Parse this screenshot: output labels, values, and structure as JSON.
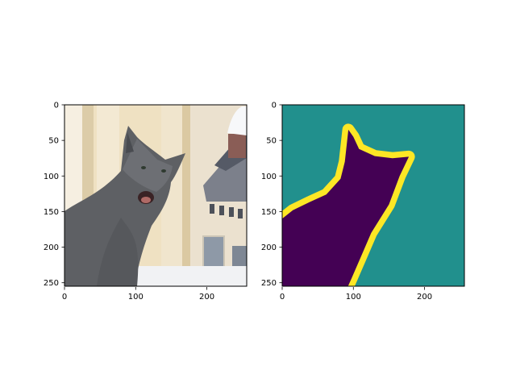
{
  "figure": {
    "background": "#ffffff"
  },
  "chart_data": [
    {
      "type": "image",
      "content": "photograph of a gray cat with its mouth open, in front of a cream-colored building",
      "x_ticks": [
        0,
        100,
        200
      ],
      "y_ticks": [
        0,
        50,
        100,
        150,
        200,
        250
      ],
      "xlim": [
        0,
        256
      ],
      "ylim": [
        256,
        0
      ],
      "colors": {
        "background_wall": "#f1e4c8",
        "column": "#f4ecd9",
        "shadow": "#d9c9a6",
        "cat_fur": "#5f6165",
        "cat_dark": "#3f4145",
        "mouth": "#b36b66",
        "roof": "#7d808c",
        "window": "#8d98a6"
      }
    },
    {
      "type": "heatmap",
      "content": "segmentation mask of the cat: background, cat region, boundary",
      "colormap": "viridis",
      "classes": [
        {
          "name": "background",
          "color": "#21908d"
        },
        {
          "name": "cat",
          "color": "#440154"
        },
        {
          "name": "boundary",
          "color": "#fde725"
        }
      ],
      "x_ticks": [
        0,
        100,
        200
      ],
      "y_ticks": [
        0,
        50,
        100,
        150,
        200,
        250
      ],
      "xlim": [
        0,
        256
      ],
      "ylim": [
        256,
        0
      ],
      "cat_outline": [
        [
          0,
          160
        ],
        [
          15,
          148
        ],
        [
          38,
          137
        ],
        [
          62,
          126
        ],
        [
          82,
          104
        ],
        [
          88,
          80
        ],
        [
          93,
          35
        ],
        [
          100,
          45
        ],
        [
          108,
          62
        ],
        [
          130,
          72
        ],
        [
          155,
          75
        ],
        [
          178,
          73
        ],
        [
          165,
          100
        ],
        [
          150,
          140
        ],
        [
          125,
          180
        ],
        [
          110,
          215
        ],
        [
          97,
          245
        ],
        [
          92,
          256
        ],
        [
          0,
          256
        ]
      ]
    }
  ]
}
